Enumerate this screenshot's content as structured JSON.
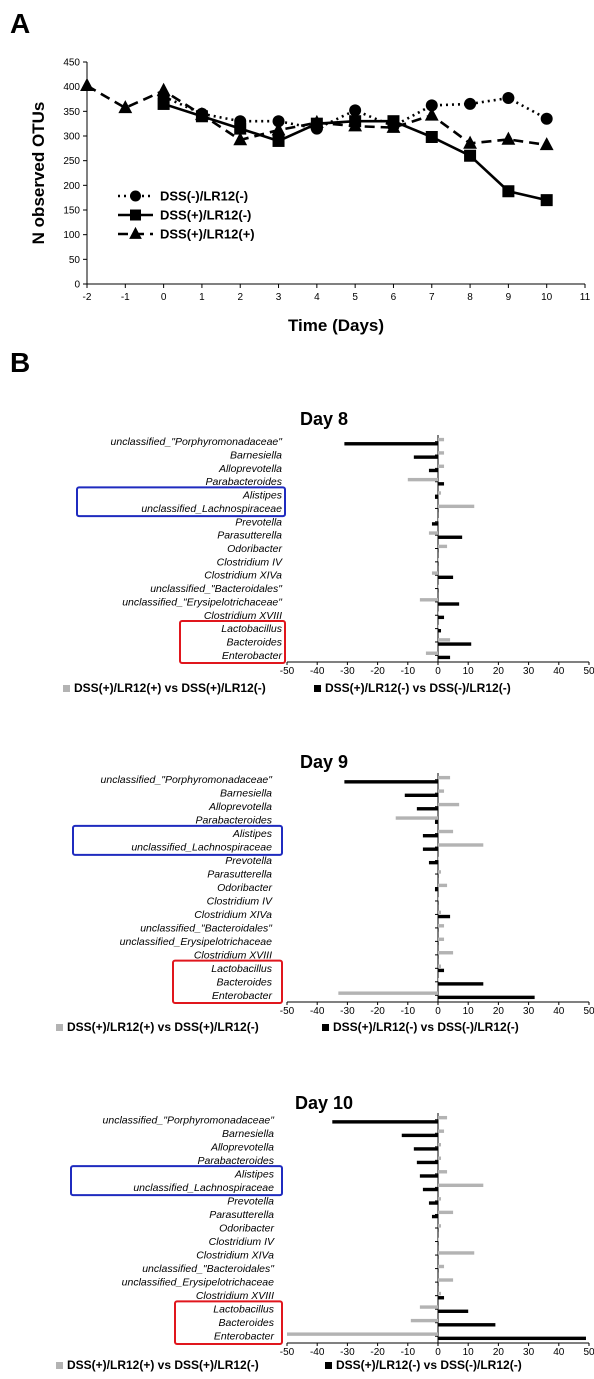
{
  "panels": {
    "a": "A",
    "b": "B"
  },
  "chart_data": [
    {
      "type": "line",
      "title": "",
      "xlabel": "Time (Days)",
      "ylabel": "N observed OTUs",
      "xlim": [
        -2,
        11
      ],
      "ylim": [
        0,
        450
      ],
      "xticks": [
        -2,
        -1,
        0,
        1,
        2,
        3,
        4,
        5,
        6,
        7,
        8,
        9,
        10,
        11
      ],
      "yticks": [
        0,
        50,
        100,
        150,
        200,
        250,
        300,
        350,
        400,
        450
      ],
      "grid": false,
      "legend": "bottom-left",
      "series": [
        {
          "name": "DSS(-)/LR12(-)",
          "marker": "circle",
          "dash": "dotted",
          "x": [
            0,
            1,
            2,
            3,
            4,
            5,
            6,
            7,
            8,
            9,
            10
          ],
          "y": [
            380,
            345,
            330,
            330,
            315,
            352,
            320,
            362,
            365,
            377,
            335
          ]
        },
        {
          "name": "DSS(+)/LR12(-)",
          "marker": "square",
          "dash": "solid",
          "x": [
            0,
            1,
            2,
            3,
            4,
            5,
            6,
            7,
            8,
            9,
            10
          ],
          "y": [
            365,
            340,
            315,
            290,
            325,
            330,
            330,
            298,
            260,
            188,
            170
          ]
        },
        {
          "name": "DSS(+)/LR12(+)",
          "marker": "triangle",
          "dash": "dashed",
          "x": [
            -2,
            -1,
            0,
            1,
            2,
            3,
            4,
            5,
            6,
            7,
            8,
            9,
            10
          ],
          "y": [
            402,
            357,
            392,
            343,
            292,
            312,
            327,
            320,
            317,
            342,
            285,
            293,
            282
          ]
        }
      ]
    },
    {
      "type": "bar",
      "orientation": "horizontal",
      "title": "Day 8",
      "xlim": [
        -50,
        50
      ],
      "xticks": [
        -50,
        -40,
        -30,
        -20,
        -10,
        0,
        10,
        20,
        30,
        40,
        50
      ],
      "categories": [
        "unclassified_\"Porphyromonadaceae\"",
        "Barnesiella",
        "Alloprevotella",
        "Parabacteroides",
        "Alistipes",
        "unclassified_Lachnospiraceae",
        "Prevotella",
        "Parasutterella",
        "Odoribacter",
        "Clostridium IV",
        "Clostridium XIVa",
        "unclassified_\"Bacteroidales\"",
        "unclassified_\"Erysipelotrichaceae\"",
        "Clostridium XVIII",
        "Lactobacillus",
        "Bacteroides",
        "Enterobacter"
      ],
      "series": [
        {
          "name": "DSS(+)/LR12(+) vs DSS(+)/LR12(-)",
          "color": "#b3b3b3",
          "values": [
            2,
            2,
            2,
            -10,
            1,
            12,
            0,
            -3,
            3,
            0,
            -2,
            0,
            -6,
            0,
            0,
            4,
            -4
          ]
        },
        {
          "name": "DSS(+)/LR12(-) vs DSS(-)/LR12(-)",
          "color": "#000000",
          "values": [
            -31,
            -8,
            -3,
            2,
            -1,
            0,
            -2,
            8,
            0,
            0,
            5,
            0,
            7,
            2,
            1,
            11,
            4
          ]
        }
      ],
      "highlight_boxes": [
        {
          "color": "#1f2bbf",
          "categories": [
            "Alistipes",
            "unclassified_Lachnospiraceae"
          ]
        },
        {
          "color": "#e0161d",
          "categories": [
            "Lactobacillus",
            "Bacteroides",
            "Enterobacter"
          ]
        }
      ]
    },
    {
      "type": "bar",
      "orientation": "horizontal",
      "title": "Day 9",
      "xlim": [
        -50,
        50
      ],
      "xticks": [
        -50,
        -40,
        -30,
        -20,
        -10,
        0,
        10,
        20,
        30,
        40,
        50
      ],
      "categories": [
        "unclassified_\"Porphyromonadaceae\"",
        "Barnesiella",
        "Alloprevotella",
        "Parabacteroides",
        "Alistipes",
        "unclassified_Lachnospiraceae",
        "Prevotella",
        "Parasutterella",
        "Odoribacter",
        "Clostridium IV",
        "Clostridium XIVa",
        "unclassified_\"Bacteroidales\"",
        "unclassified_Erysipelotrichaceae",
        "Clostridium XVIII",
        "Lactobacillus",
        "Bacteroides",
        "Enterobacter"
      ],
      "series": [
        {
          "name": "DSS(+)/LR12(+) vs DSS(+)/LR12(-)",
          "color": "#b3b3b3",
          "values": [
            4,
            2,
            7,
            -14,
            5,
            15,
            0,
            1,
            3,
            0,
            1,
            2,
            2,
            5,
            1,
            0,
            -33
          ]
        },
        {
          "name": "DSS(+)/LR12(-) vs DSS(-)/LR12(-)",
          "color": "#000000",
          "values": [
            -31,
            -11,
            -7,
            -1,
            -5,
            -5,
            -3,
            0,
            -1,
            0,
            4,
            0,
            0,
            0,
            2,
            15,
            32
          ]
        }
      ],
      "highlight_boxes": [
        {
          "color": "#1f2bbf",
          "categories": [
            "Alistipes",
            "unclassified_Lachnospiraceae"
          ]
        },
        {
          "color": "#e0161d",
          "categories": [
            "Lactobacillus",
            "Bacteroides",
            "Enterobacter"
          ]
        }
      ]
    },
    {
      "type": "bar",
      "orientation": "horizontal",
      "title": "Day 10",
      "xlim": [
        -50,
        50
      ],
      "xticks": [
        -50,
        -40,
        -30,
        -20,
        -10,
        0,
        10,
        20,
        30,
        40,
        50
      ],
      "categories": [
        "unclassified_\"Porphyromonadaceae\"",
        "Barnesiella",
        "Alloprevotella",
        "Parabacteroides",
        "Alistipes",
        "unclassified_Lachnospiraceae",
        "Prevotella",
        "Parasutterella",
        "Odoribacter",
        "Clostridium IV",
        "Clostridium XIVa",
        "unclassified_\"Bacteroidales\"",
        "unclassified_Erysipelotrichaceae",
        "Clostridium XVIII",
        "Lactobacillus",
        "Bacteroides",
        "Enterobacter"
      ],
      "series": [
        {
          "name": "DSS(+)/LR12(+) vs DSS(+)/LR12(-)",
          "color": "#b3b3b3",
          "values": [
            3,
            2,
            1,
            1,
            3,
            15,
            1,
            5,
            1,
            0,
            12,
            2,
            5,
            1,
            -6,
            -9,
            -50
          ]
        },
        {
          "name": "DSS(+)/LR12(-) vs DSS(-)/LR12(-)",
          "color": "#000000",
          "values": [
            -35,
            -12,
            -8,
            -7,
            -6,
            -5,
            -3,
            -2,
            0,
            0,
            0,
            0,
            0,
            2,
            10,
            19,
            49
          ]
        }
      ],
      "highlight_boxes": [
        {
          "color": "#1f2bbf",
          "categories": [
            "Alistipes",
            "unclassified_Lachnospiraceae"
          ]
        },
        {
          "color": "#e0161d",
          "categories": [
            "Lactobacillus",
            "Bacteroides",
            "Enterobacter"
          ]
        }
      ]
    }
  ]
}
